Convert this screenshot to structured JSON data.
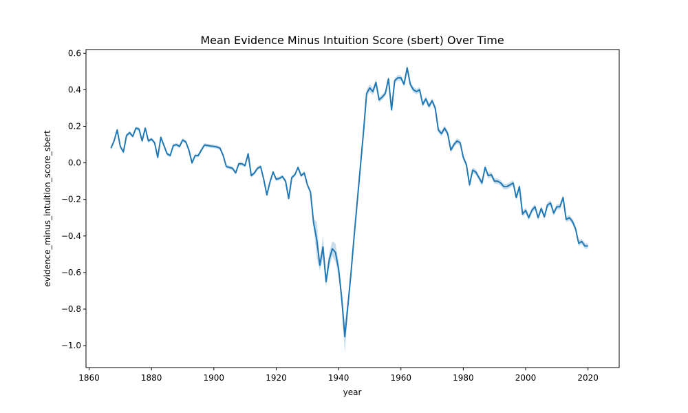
{
  "chart_data": {
    "type": "line",
    "title": "Mean Evidence Minus Intuition Score (sbert) Over Time",
    "xlabel": "year",
    "ylabel": "evidence_minus_intuition_score_sbert",
    "xlim": [
      1859,
      2030
    ],
    "ylim": [
      -1.12,
      0.62
    ],
    "xticks": [
      1860,
      1880,
      1900,
      1920,
      1940,
      1960,
      1980,
      2000,
      2020
    ],
    "xtick_labels": [
      "1860",
      "1880",
      "1900",
      "1920",
      "1940",
      "1960",
      "1980",
      "2000",
      "2020"
    ],
    "yticks": [
      -1.0,
      -0.8,
      -0.6,
      -0.4,
      -0.2,
      0.0,
      0.2,
      0.4,
      0.6
    ],
    "ytick_labels": [
      "−1.0",
      "−0.8",
      "−0.6",
      "−0.4",
      "−0.2",
      "0.0",
      "0.2",
      "0.4",
      "0.6"
    ],
    "grid": false,
    "line_color": "#1f77b4",
    "band_color": "#1f77b4",
    "series": [
      {
        "points": [
          [
            1867,
            0.08,
            0.07,
            0.09
          ],
          [
            1868,
            0.12,
            0.11,
            0.13
          ],
          [
            1869,
            0.18,
            0.17,
            0.19
          ],
          [
            1870,
            0.09,
            0.08,
            0.1
          ],
          [
            1871,
            0.06,
            0.05,
            0.07
          ],
          [
            1872,
            0.15,
            0.14,
            0.16
          ],
          [
            1873,
            0.165,
            0.155,
            0.175
          ],
          [
            1874,
            0.145,
            0.135,
            0.155
          ],
          [
            1875,
            0.19,
            0.18,
            0.2
          ],
          [
            1876,
            0.185,
            0.175,
            0.195
          ],
          [
            1877,
            0.12,
            0.11,
            0.13
          ],
          [
            1878,
            0.19,
            0.18,
            0.2
          ],
          [
            1879,
            0.12,
            0.11,
            0.13
          ],
          [
            1880,
            0.13,
            0.12,
            0.14
          ],
          [
            1881,
            0.11,
            0.1,
            0.12
          ],
          [
            1882,
            0.03,
            0.02,
            0.04
          ],
          [
            1883,
            0.14,
            0.13,
            0.15
          ],
          [
            1884,
            0.095,
            0.085,
            0.105
          ],
          [
            1885,
            0.05,
            0.04,
            0.06
          ],
          [
            1886,
            0.04,
            0.03,
            0.05
          ],
          [
            1887,
            0.095,
            0.085,
            0.105
          ],
          [
            1888,
            0.1,
            0.09,
            0.11
          ],
          [
            1889,
            0.09,
            0.08,
            0.1
          ],
          [
            1890,
            0.125,
            0.115,
            0.135
          ],
          [
            1891,
            0.115,
            0.105,
            0.125
          ],
          [
            1892,
            0.07,
            0.06,
            0.08
          ],
          [
            1893,
            0.0,
            -0.01,
            0.01
          ],
          [
            1894,
            0.04,
            0.03,
            0.05
          ],
          [
            1895,
            0.04,
            0.03,
            0.05
          ],
          [
            1896,
            0.07,
            0.06,
            0.08
          ],
          [
            1897,
            0.098,
            0.088,
            0.108
          ],
          [
            1898,
            0.095,
            0.085,
            0.105
          ],
          [
            1899,
            0.092,
            0.082,
            0.102
          ],
          [
            1900,
            0.09,
            0.08,
            0.1
          ],
          [
            1901,
            0.087,
            0.077,
            0.097
          ],
          [
            1902,
            0.08,
            0.07,
            0.09
          ],
          [
            1903,
            0.04,
            0.03,
            0.05
          ],
          [
            1904,
            -0.02,
            -0.03,
            -0.01
          ],
          [
            1905,
            -0.025,
            -0.035,
            -0.015
          ],
          [
            1906,
            -0.03,
            -0.04,
            -0.02
          ],
          [
            1907,
            -0.055,
            -0.065,
            -0.045
          ],
          [
            1908,
            -0.005,
            -0.015,
            0.005
          ],
          [
            1909,
            -0.005,
            -0.015,
            0.005
          ],
          [
            1910,
            -0.015,
            -0.025,
            -0.005
          ],
          [
            1911,
            0.05,
            0.04,
            0.06
          ],
          [
            1912,
            -0.07,
            -0.08,
            -0.06
          ],
          [
            1913,
            -0.055,
            -0.065,
            -0.045
          ],
          [
            1914,
            -0.03,
            -0.04,
            -0.02
          ],
          [
            1915,
            -0.02,
            -0.03,
            -0.01
          ],
          [
            1916,
            -0.09,
            -0.1,
            -0.08
          ],
          [
            1917,
            -0.175,
            -0.185,
            -0.165
          ],
          [
            1918,
            -0.105,
            -0.115,
            -0.095
          ],
          [
            1919,
            -0.05,
            -0.06,
            -0.04
          ],
          [
            1920,
            -0.09,
            -0.1,
            -0.08
          ],
          [
            1921,
            -0.085,
            -0.095,
            -0.075
          ],
          [
            1922,
            -0.075,
            -0.085,
            -0.065
          ],
          [
            1923,
            -0.1,
            -0.11,
            -0.09
          ],
          [
            1924,
            -0.195,
            -0.205,
            -0.185
          ],
          [
            1925,
            -0.08,
            -0.09,
            -0.07
          ],
          [
            1926,
            -0.065,
            -0.075,
            -0.055
          ],
          [
            1927,
            -0.025,
            -0.035,
            -0.015
          ],
          [
            1928,
            -0.07,
            -0.08,
            -0.06
          ],
          [
            1929,
            -0.055,
            -0.065,
            -0.045
          ],
          [
            1930,
            -0.12,
            -0.13,
            -0.11
          ],
          [
            1931,
            -0.16,
            -0.17,
            -0.15
          ],
          [
            1932,
            -0.33,
            -0.35,
            -0.31
          ],
          [
            1933,
            -0.42,
            -0.52,
            -0.32
          ],
          [
            1934,
            -0.56,
            -0.59,
            -0.53
          ],
          [
            1935,
            -0.46,
            -0.52,
            -0.4
          ],
          [
            1936,
            -0.65,
            -0.68,
            -0.62
          ],
          [
            1937,
            -0.53,
            -0.57,
            -0.49
          ],
          [
            1938,
            -0.47,
            -0.51,
            -0.43
          ],
          [
            1939,
            -0.49,
            -0.54,
            -0.44
          ],
          [
            1940,
            -0.58,
            -0.62,
            -0.54
          ],
          [
            1941,
            -0.74,
            -0.78,
            -0.7
          ],
          [
            1942,
            -0.95,
            -1.04,
            -0.88
          ],
          [
            1943,
            -0.78,
            -0.82,
            -0.74
          ],
          [
            1944,
            -0.6,
            -0.63,
            -0.57
          ],
          [
            1945,
            -0.4,
            -0.43,
            -0.37
          ],
          [
            1946,
            -0.21,
            -0.24,
            -0.18
          ],
          [
            1947,
            -0.02,
            -0.04,
            0.0
          ],
          [
            1948,
            0.17,
            0.15,
            0.19
          ],
          [
            1949,
            0.38,
            0.36,
            0.4
          ],
          [
            1950,
            0.41,
            0.39,
            0.43
          ],
          [
            1951,
            0.39,
            0.37,
            0.41
          ],
          [
            1952,
            0.44,
            0.42,
            0.46
          ],
          [
            1953,
            0.345,
            0.33,
            0.36
          ],
          [
            1954,
            0.36,
            0.345,
            0.375
          ],
          [
            1955,
            0.38,
            0.365,
            0.395
          ],
          [
            1956,
            0.46,
            0.445,
            0.475
          ],
          [
            1957,
            0.29,
            0.275,
            0.305
          ],
          [
            1958,
            0.45,
            0.435,
            0.465
          ],
          [
            1959,
            0.465,
            0.45,
            0.48
          ],
          [
            1960,
            0.465,
            0.45,
            0.48
          ],
          [
            1961,
            0.43,
            0.415,
            0.445
          ],
          [
            1962,
            0.52,
            0.5,
            0.54
          ],
          [
            1963,
            0.43,
            0.415,
            0.445
          ],
          [
            1964,
            0.4,
            0.385,
            0.415
          ],
          [
            1965,
            0.39,
            0.375,
            0.405
          ],
          [
            1966,
            0.4,
            0.385,
            0.415
          ],
          [
            1967,
            0.32,
            0.305,
            0.335
          ],
          [
            1968,
            0.35,
            0.335,
            0.365
          ],
          [
            1969,
            0.31,
            0.295,
            0.325
          ],
          [
            1970,
            0.34,
            0.325,
            0.355
          ],
          [
            1971,
            0.3,
            0.285,
            0.315
          ],
          [
            1972,
            0.18,
            0.165,
            0.195
          ],
          [
            1973,
            0.16,
            0.145,
            0.175
          ],
          [
            1974,
            0.19,
            0.175,
            0.205
          ],
          [
            1975,
            0.16,
            0.145,
            0.175
          ],
          [
            1976,
            0.07,
            0.055,
            0.085
          ],
          [
            1977,
            0.1,
            0.085,
            0.115
          ],
          [
            1978,
            0.12,
            0.105,
            0.135
          ],
          [
            1979,
            0.11,
            0.095,
            0.125
          ],
          [
            1980,
            0.03,
            0.015,
            0.045
          ],
          [
            1981,
            -0.01,
            -0.025,
            0.005
          ],
          [
            1982,
            -0.12,
            -0.135,
            -0.105
          ],
          [
            1983,
            -0.04,
            -0.055,
            -0.025
          ],
          [
            1984,
            -0.05,
            -0.065,
            -0.035
          ],
          [
            1985,
            -0.08,
            -0.095,
            -0.065
          ],
          [
            1986,
            -0.11,
            -0.125,
            -0.095
          ],
          [
            1987,
            -0.025,
            -0.04,
            -0.01
          ],
          [
            1988,
            -0.07,
            -0.085,
            -0.055
          ],
          [
            1989,
            -0.065,
            -0.08,
            -0.05
          ],
          [
            1990,
            -0.1,
            -0.115,
            -0.085
          ],
          [
            1991,
            -0.1,
            -0.115,
            -0.085
          ],
          [
            1992,
            -0.11,
            -0.125,
            -0.095
          ],
          [
            1993,
            -0.13,
            -0.145,
            -0.115
          ],
          [
            1994,
            -0.13,
            -0.145,
            -0.115
          ],
          [
            1995,
            -0.12,
            -0.135,
            -0.105
          ],
          [
            1996,
            -0.11,
            -0.125,
            -0.095
          ],
          [
            1997,
            -0.19,
            -0.205,
            -0.175
          ],
          [
            1998,
            -0.13,
            -0.145,
            -0.115
          ],
          [
            1999,
            -0.28,
            -0.295,
            -0.265
          ],
          [
            2000,
            -0.26,
            -0.275,
            -0.245
          ],
          [
            2001,
            -0.3,
            -0.315,
            -0.285
          ],
          [
            2002,
            -0.26,
            -0.275,
            -0.245
          ],
          [
            2003,
            -0.24,
            -0.255,
            -0.225
          ],
          [
            2004,
            -0.3,
            -0.315,
            -0.285
          ],
          [
            2005,
            -0.25,
            -0.265,
            -0.235
          ],
          [
            2006,
            -0.295,
            -0.31,
            -0.28
          ],
          [
            2007,
            -0.23,
            -0.245,
            -0.215
          ],
          [
            2008,
            -0.22,
            -0.235,
            -0.205
          ],
          [
            2009,
            -0.275,
            -0.29,
            -0.26
          ],
          [
            2010,
            -0.24,
            -0.255,
            -0.225
          ],
          [
            2011,
            -0.24,
            -0.255,
            -0.225
          ],
          [
            2012,
            -0.19,
            -0.205,
            -0.175
          ],
          [
            2013,
            -0.31,
            -0.325,
            -0.295
          ],
          [
            2014,
            -0.3,
            -0.315,
            -0.285
          ],
          [
            2015,
            -0.32,
            -0.335,
            -0.305
          ],
          [
            2016,
            -0.36,
            -0.375,
            -0.345
          ],
          [
            2017,
            -0.44,
            -0.455,
            -0.425
          ],
          [
            2018,
            -0.43,
            -0.445,
            -0.415
          ],
          [
            2019,
            -0.455,
            -0.47,
            -0.44
          ],
          [
            2020,
            -0.455,
            -0.47,
            -0.44
          ]
        ]
      }
    ]
  }
}
